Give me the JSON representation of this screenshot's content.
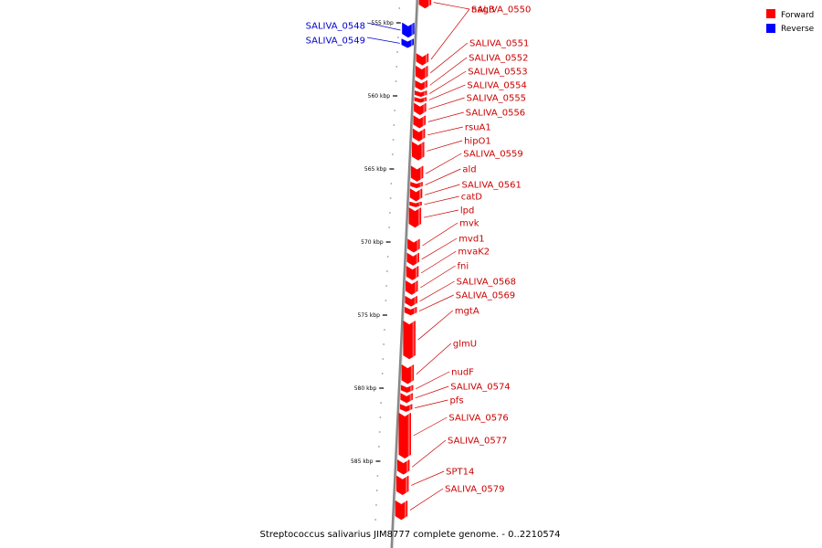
{
  "caption": "Streptococcus salivarius JIM8777 complete genome. - 0..2210574",
  "legend": [
    {
      "label": "Forward",
      "color": "#ff0000"
    },
    {
      "label": "Reverse",
      "color": "#0000ff"
    }
  ],
  "strand_colors": {
    "forward": "#ff0000",
    "reverse": "#0000ff",
    "label_forward": "#cc0000",
    "label_reverse": "#0000cc",
    "backbone": "#888888"
  },
  "ticks": [
    {
      "kbp": 555,
      "label": "555 kbp"
    },
    {
      "kbp": 560,
      "label": "560 kbp"
    },
    {
      "kbp": 565,
      "label": "565 kbp"
    },
    {
      "kbp": 570,
      "label": "570 kbp"
    },
    {
      "kbp": 575,
      "label": "575 kbp"
    },
    {
      "kbp": 580,
      "label": "580 kbp"
    },
    {
      "kbp": 585,
      "label": "585 kbp"
    }
  ],
  "genes": [
    {
      "name": "nagB",
      "strand": "forward",
      "start_kbp": 553.2,
      "end_kbp": 554.0
    },
    {
      "name": "SALIVA_0548",
      "strand": "reverse",
      "start_kbp": 555.0,
      "end_kbp": 556.0
    },
    {
      "name": "SALIVA_0549",
      "strand": "reverse",
      "start_kbp": 556.1,
      "end_kbp": 556.7
    },
    {
      "name": "SALIVA_0550",
      "strand": "forward",
      "start_kbp": 557.1,
      "end_kbp": 557.9
    },
    {
      "name": "SALIVA_0551",
      "strand": "forward",
      "start_kbp": 557.95,
      "end_kbp": 558.9
    },
    {
      "name": "SALIVA_0552",
      "strand": "forward",
      "start_kbp": 558.95,
      "end_kbp": 559.6
    },
    {
      "name": "SALIVA_0553",
      "strand": "forward",
      "start_kbp": 559.65,
      "end_kbp": 560.05
    },
    {
      "name": "SALIVA_0554",
      "strand": "forward",
      "start_kbp": 560.1,
      "end_kbp": 560.45
    },
    {
      "name": "SALIVA_0555",
      "strand": "forward",
      "start_kbp": 560.5,
      "end_kbp": 561.3
    },
    {
      "name": "SALIVA_0556",
      "strand": "forward",
      "start_kbp": 561.35,
      "end_kbp": 562.2
    },
    {
      "name": "rsuA1",
      "strand": "forward",
      "start_kbp": 562.25,
      "end_kbp": 563.1
    },
    {
      "name": "hipO1",
      "strand": "forward",
      "start_kbp": 563.15,
      "end_kbp": 564.4
    },
    {
      "name": "SALIVA_0559",
      "strand": "forward",
      "start_kbp": 564.8,
      "end_kbp": 565.85
    },
    {
      "name": "ald",
      "strand": "forward",
      "start_kbp": 565.9,
      "end_kbp": 566.3
    },
    {
      "name": "SALIVA_0561",
      "strand": "forward",
      "start_kbp": 566.35,
      "end_kbp": 567.2
    },
    {
      "name": "catD",
      "strand": "forward",
      "start_kbp": 567.25,
      "end_kbp": 567.6
    },
    {
      "name": "lpd",
      "strand": "forward",
      "start_kbp": 567.65,
      "end_kbp": 569.0
    },
    {
      "name": "mvk",
      "strand": "forward",
      "start_kbp": 569.8,
      "end_kbp": 570.7
    },
    {
      "name": "mvd1",
      "strand": "forward",
      "start_kbp": 570.75,
      "end_kbp": 571.6
    },
    {
      "name": "mvaK2",
      "strand": "forward",
      "start_kbp": 571.65,
      "end_kbp": 572.6
    },
    {
      "name": "fni",
      "strand": "forward",
      "start_kbp": 572.65,
      "end_kbp": 573.6
    },
    {
      "name": "SALIVA_0568",
      "strand": "forward",
      "start_kbp": 573.7,
      "end_kbp": 574.4
    },
    {
      "name": "SALIVA_0569",
      "strand": "forward",
      "start_kbp": 574.45,
      "end_kbp": 575.0
    },
    {
      "name": "mgtA",
      "strand": "forward",
      "start_kbp": 575.4,
      "end_kbp": 578.0
    },
    {
      "name": "glmU",
      "strand": "forward",
      "start_kbp": 578.4,
      "end_kbp": 579.7
    },
    {
      "name": "nudF",
      "strand": "forward",
      "start_kbp": 579.8,
      "end_kbp": 580.3
    },
    {
      "name": "SALIVA_0574",
      "strand": "forward",
      "start_kbp": 580.35,
      "end_kbp": 581.0
    },
    {
      "name": "pfs",
      "strand": "forward",
      "start_kbp": 581.1,
      "end_kbp": 581.6
    },
    {
      "name": "SALIVA_0576",
      "strand": "forward",
      "start_kbp": 581.7,
      "end_kbp": 584.8
    },
    {
      "name": "SALIVA_0577",
      "strand": "forward",
      "start_kbp": 584.9,
      "end_kbp": 585.9
    },
    {
      "name": "SPT14",
      "strand": "forward",
      "start_kbp": 586.0,
      "end_kbp": 587.3
    },
    {
      "name": "SALIVA_0579",
      "strand": "forward",
      "start_kbp": 587.7,
      "end_kbp": 589.0
    }
  ]
}
